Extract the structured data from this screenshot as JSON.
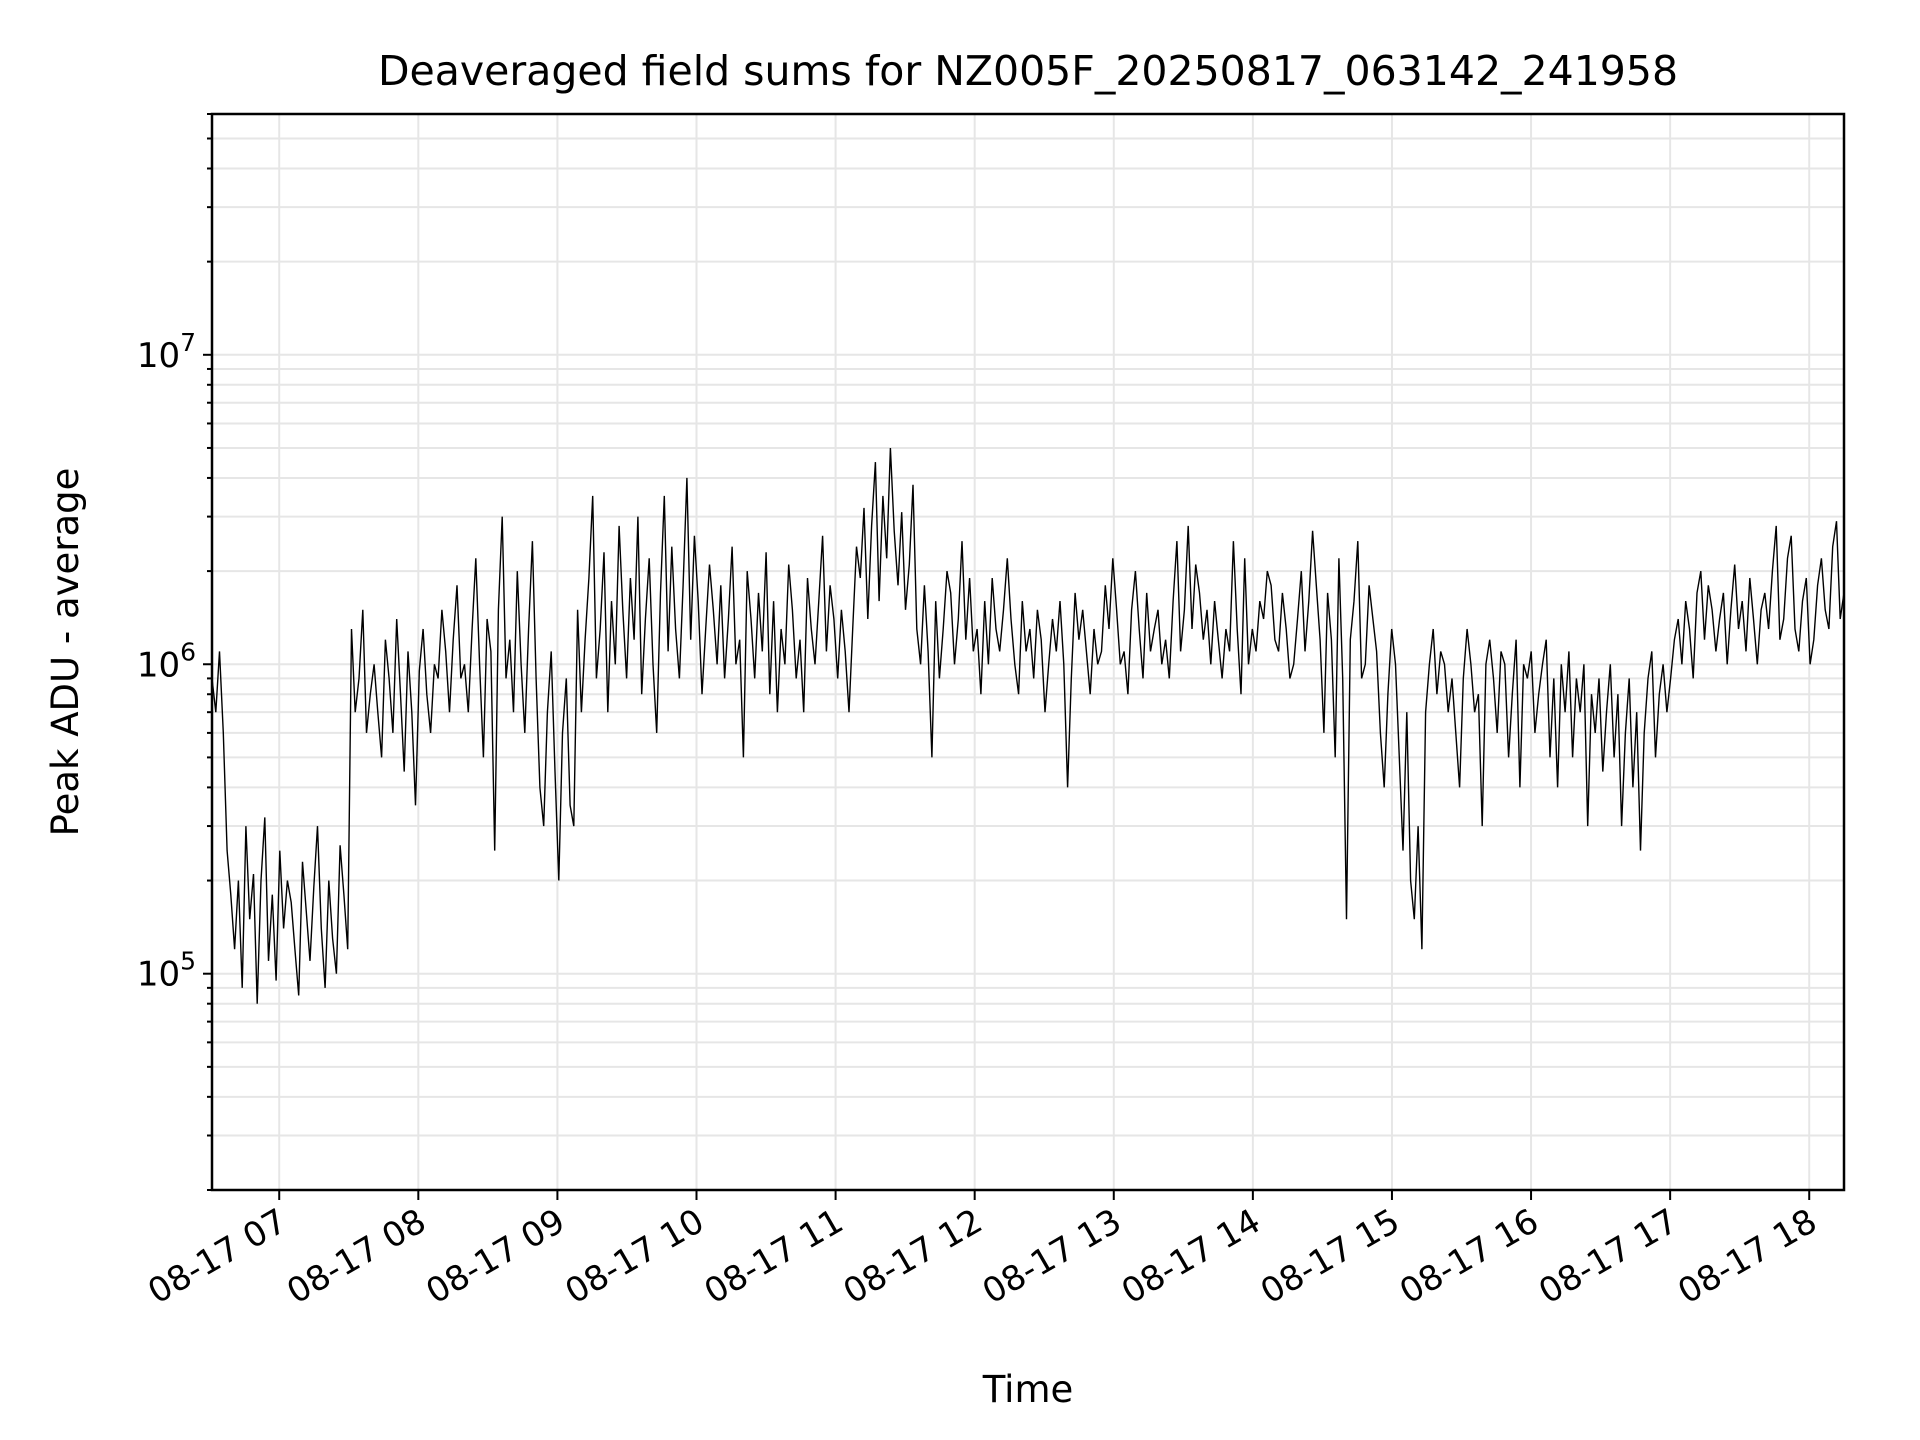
{
  "chart_data": {
    "type": "line",
    "title": "Deaveraged field sums for NZ005F_20250817_063142_241958",
    "xlabel": "Time",
    "ylabel": "Peak ADU - average",
    "y_scale": "log",
    "ylim": [
      20000,
      60000000
    ],
    "xlim": [
      "08-17 06:31",
      "08-17 18:15"
    ],
    "grid": true,
    "x_ticks": [
      "08-17 07",
      "08-17 08",
      "08-17 09",
      "08-17 10",
      "08-17 11",
      "08-17 12",
      "08-17 13",
      "08-17 14",
      "08-17 15",
      "08-17 16",
      "08-17 17",
      "08-17 18"
    ],
    "y_ticks": [
      {
        "base": "10",
        "exp": "5",
        "value": 100000
      },
      {
        "base": "10",
        "exp": "6",
        "value": 1000000
      },
      {
        "base": "10",
        "exp": "7",
        "value": 10000000
      }
    ],
    "series": [
      {
        "color": "#000000",
        "x_start": "08-17 06:31",
        "x_end": "08-17 18:15",
        "values": [
          900000,
          700000,
          1100000,
          600000,
          250000,
          180000,
          120000,
          200000,
          90000,
          300000,
          150000,
          210000,
          80000,
          200000,
          320000,
          110000,
          180000,
          95000,
          250000,
          140000,
          200000,
          170000,
          120000,
          85000,
          230000,
          160000,
          110000,
          190000,
          300000,
          140000,
          90000,
          200000,
          130000,
          100000,
          260000,
          180000,
          120000,
          1300000,
          700000,
          900000,
          1500000,
          600000,
          800000,
          1000000,
          700000,
          500000,
          1200000,
          900000,
          600000,
          1400000,
          800000,
          450000,
          1100000,
          700000,
          350000,
          950000,
          1300000,
          800000,
          600000,
          1000000,
          900000,
          1500000,
          1100000,
          700000,
          1200000,
          1800000,
          900000,
          1000000,
          700000,
          1300000,
          2200000,
          1000000,
          500000,
          1400000,
          1100000,
          250000,
          1500000,
          3000000,
          900000,
          1200000,
          700000,
          2000000,
          1000000,
          600000,
          1300000,
          2500000,
          900000,
          400000,
          300000,
          700000,
          1100000,
          450000,
          200000,
          600000,
          900000,
          350000,
          300000,
          1500000,
          700000,
          1200000,
          1900000,
          3500000,
          900000,
          1300000,
          2300000,
          700000,
          1600000,
          1000000,
          2800000,
          1500000,
          900000,
          1900000,
          1200000,
          3000000,
          800000,
          1400000,
          2200000,
          1000000,
          600000,
          1700000,
          3500000,
          1100000,
          2400000,
          1300000,
          900000,
          1800000,
          4000000,
          1200000,
          2600000,
          1600000,
          800000,
          1300000,
          2100000,
          1500000,
          1000000,
          1800000,
          900000,
          1400000,
          2400000,
          1000000,
          1200000,
          500000,
          2000000,
          1400000,
          900000,
          1700000,
          1100000,
          2300000,
          800000,
          1600000,
          700000,
          1300000,
          1000000,
          2100000,
          1500000,
          900000,
          1200000,
          700000,
          1900000,
          1300000,
          1000000,
          1600000,
          2600000,
          1100000,
          1800000,
          1400000,
          900000,
          1500000,
          1100000,
          700000,
          1300000,
          2400000,
          1900000,
          3200000,
          1400000,
          2800000,
          4500000,
          1600000,
          3500000,
          2200000,
          5000000,
          2700000,
          1800000,
          3100000,
          1500000,
          2100000,
          3800000,
          1300000,
          1000000,
          1800000,
          1100000,
          500000,
          1600000,
          900000,
          1300000,
          2000000,
          1700000,
          1000000,
          1400000,
          2500000,
          1200000,
          1900000,
          1100000,
          1300000,
          800000,
          1600000,
          1000000,
          1900000,
          1300000,
          1100000,
          1500000,
          2200000,
          1400000,
          1000000,
          800000,
          1600000,
          1100000,
          1300000,
          900000,
          1500000,
          1200000,
          700000,
          1000000,
          1400000,
          1100000,
          1600000,
          1000000,
          400000,
          900000,
          1700000,
          1200000,
          1500000,
          1100000,
          800000,
          1300000,
          1000000,
          1100000,
          1800000,
          1300000,
          2200000,
          1500000,
          1000000,
          1100000,
          800000,
          1500000,
          2000000,
          1300000,
          900000,
          1700000,
          1100000,
          1300000,
          1500000,
          1000000,
          1200000,
          900000,
          1600000,
          2500000,
          1100000,
          1500000,
          2800000,
          1300000,
          2100000,
          1700000,
          1200000,
          1500000,
          1000000,
          1600000,
          1200000,
          900000,
          1300000,
          1100000,
          2500000,
          1300000,
          800000,
          2200000,
          1000000,
          1300000,
          1100000,
          1600000,
          1400000,
          2000000,
          1800000,
          1200000,
          1100000,
          1700000,
          1300000,
          900000,
          1000000,
          1400000,
          2000000,
          1100000,
          1600000,
          2700000,
          1800000,
          1200000,
          600000,
          1700000,
          1200000,
          500000,
          2200000,
          900000,
          150000,
          1200000,
          1600000,
          2500000,
          900000,
          1000000,
          1800000,
          1400000,
          1100000,
          600000,
          400000,
          800000,
          1300000,
          1000000,
          500000,
          250000,
          700000,
          200000,
          150000,
          300000,
          120000,
          700000,
          1000000,
          1300000,
          800000,
          1100000,
          1000000,
          700000,
          900000,
          600000,
          400000,
          900000,
          1300000,
          1000000,
          700000,
          800000,
          300000,
          1000000,
          1200000,
          900000,
          600000,
          1100000,
          1000000,
          500000,
          800000,
          1200000,
          400000,
          1000000,
          900000,
          1100000,
          600000,
          800000,
          1000000,
          1200000,
          500000,
          900000,
          400000,
          1000000,
          700000,
          1100000,
          500000,
          900000,
          700000,
          1000000,
          300000,
          800000,
          600000,
          900000,
          450000,
          700000,
          1000000,
          500000,
          800000,
          300000,
          600000,
          900000,
          400000,
          700000,
          250000,
          600000,
          900000,
          1100000,
          500000,
          800000,
          1000000,
          700000,
          900000,
          1200000,
          1400000,
          1000000,
          1600000,
          1300000,
          900000,
          1700000,
          2000000,
          1200000,
          1800000,
          1500000,
          1100000,
          1400000,
          1700000,
          1000000,
          1500000,
          2100000,
          1300000,
          1600000,
          1100000,
          1900000,
          1400000,
          1000000,
          1500000,
          1700000,
          1300000,
          2000000,
          2800000,
          1200000,
          1400000,
          2200000,
          2600000,
          1300000,
          1100000,
          1600000,
          1900000,
          1000000,
          1200000,
          1800000,
          2200000,
          1500000,
          1300000,
          2400000,
          2900000,
          1400000,
          1700000
        ]
      }
    ]
  }
}
